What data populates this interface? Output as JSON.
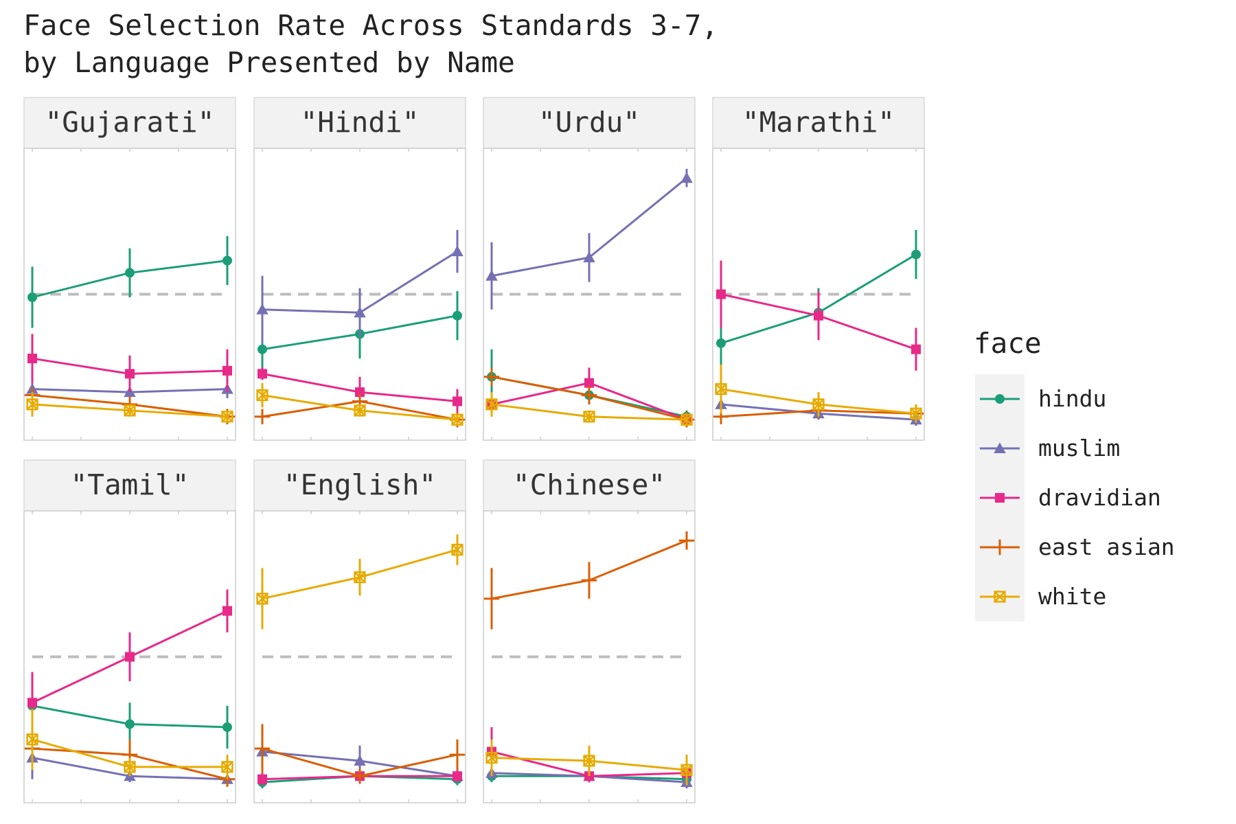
{
  "title_lines": [
    "Face Selection Rate Across Standards 3-7,",
    "by Language Presented by Name"
  ],
  "legend": {
    "title": "face",
    "items": [
      {
        "key": "hindu",
        "label": "hindu",
        "color": "#1b9e77",
        "shape": "circle"
      },
      {
        "key": "muslim",
        "label": "muslim",
        "color": "#7570b3",
        "shape": "triangle"
      },
      {
        "key": "dravidian",
        "label": "dravidian",
        "color": "#e7298a",
        "shape": "square"
      },
      {
        "key": "east_asian",
        "label": "east asian",
        "color": "#d95f02",
        "shape": "plus"
      },
      {
        "key": "white",
        "label": "white",
        "color": "#e6ab02",
        "shape": "boxed-x"
      }
    ]
  },
  "chart_data": {
    "type": "line",
    "title": "Face Selection Rate Across Standards 3-7, by Language Presented by Name",
    "facet_by": "language",
    "x": [
      3,
      5,
      7
    ],
    "x_tick_labels_shown": false,
    "y_tick_labels_shown": false,
    "ylim": [
      0,
      0.9
    ],
    "reference_line": {
      "y": 0.45,
      "style": "dashed",
      "color": "#bdbdbd"
    },
    "grid": false,
    "legend_position": "right",
    "panels": [
      {
        "label": "\"Gujarati\"",
        "series": [
          {
            "name": "hindu",
            "y": [
              0.44,
              0.52,
              0.56
            ],
            "err": [
              0.1,
              0.08,
              0.08
            ]
          },
          {
            "name": "muslim",
            "y": [
              0.14,
              0.13,
              0.14
            ],
            "err": [
              0.03,
              0.03,
              0.03
            ]
          },
          {
            "name": "dravidian",
            "y": [
              0.24,
              0.19,
              0.2
            ],
            "err": [
              0.08,
              0.06,
              0.07
            ]
          },
          {
            "name": "east asian",
            "y": [
              0.12,
              0.09,
              0.05
            ],
            "err": [
              0.02,
              0.02,
              0.02
            ]
          },
          {
            "name": "white",
            "y": [
              0.09,
              0.07,
              0.05
            ],
            "err": [
              0.04,
              0.02,
              0.02
            ]
          }
        ]
      },
      {
        "label": "\"Hindi\"",
        "series": [
          {
            "name": "hindu",
            "y": [
              0.27,
              0.32,
              0.38
            ],
            "err": [
              0.07,
              0.08,
              0.08
            ]
          },
          {
            "name": "muslim",
            "y": [
              0.4,
              0.39,
              0.59
            ],
            "err": [
              0.11,
              0.08,
              0.07
            ]
          },
          {
            "name": "dravidian",
            "y": [
              0.19,
              0.13,
              0.1
            ],
            "err": [
              0.02,
              0.05,
              0.04
            ]
          },
          {
            "name": "east asian",
            "y": [
              0.05,
              0.1,
              0.04
            ],
            "err": [
              0.02,
              0.02,
              0.02
            ]
          },
          {
            "name": "white",
            "y": [
              0.12,
              0.07,
              0.04
            ],
            "err": [
              0.04,
              0.02,
              0.02
            ]
          }
        ]
      },
      {
        "label": "\"Urdu\"",
        "series": [
          {
            "name": "hindu",
            "y": [
              0.18,
              0.12,
              0.05
            ],
            "err": [
              0.09,
              0.03,
              0.02
            ]
          },
          {
            "name": "muslim",
            "y": [
              0.51,
              0.57,
              0.83
            ],
            "err": [
              0.11,
              0.08,
              0.03
            ]
          },
          {
            "name": "dravidian",
            "y": [
              0.09,
              0.16,
              0.04
            ],
            "err": [
              0.04,
              0.05,
              0.02
            ]
          },
          {
            "name": "east asian",
            "y": [
              0.18,
              0.12,
              0.04
            ],
            "err": [
              0.03,
              0.03,
              0.02
            ]
          },
          {
            "name": "white",
            "y": [
              0.09,
              0.05,
              0.04
            ],
            "err": [
              0.04,
              0.02,
              0.02
            ]
          }
        ]
      },
      {
        "label": "\"Marathi\"",
        "series": [
          {
            "name": "hindu",
            "y": [
              0.29,
              0.39,
              0.58
            ],
            "err": [
              0.11,
              0.08,
              0.08
            ]
          },
          {
            "name": "muslim",
            "y": [
              0.09,
              0.06,
              0.04
            ],
            "err": [
              0.02,
              0.02,
              0.02
            ]
          },
          {
            "name": "dravidian",
            "y": [
              0.45,
              0.38,
              0.27
            ],
            "err": [
              0.11,
              0.08,
              0.07
            ]
          },
          {
            "name": "east asian",
            "y": [
              0.05,
              0.07,
              0.06
            ],
            "err": [
              0.02,
              0.02,
              0.02
            ]
          },
          {
            "name": "white",
            "y": [
              0.14,
              0.09,
              0.06
            ],
            "err": [
              0.08,
              0.04,
              0.03
            ]
          }
        ]
      },
      {
        "label": "\"Tamil\"",
        "series": [
          {
            "name": "hindu",
            "y": [
              0.29,
              0.23,
              0.22
            ],
            "err": [
              0.11,
              0.07,
              0.07
            ]
          },
          {
            "name": "muslim",
            "y": [
              0.12,
              0.06,
              0.05
            ],
            "err": [
              0.07,
              0.02,
              0.02
            ]
          },
          {
            "name": "dravidian",
            "y": [
              0.3,
              0.45,
              0.6
            ],
            "err": [
              0.1,
              0.08,
              0.07
            ]
          },
          {
            "name": "east asian",
            "y": [
              0.15,
              0.13,
              0.05
            ],
            "err": [
              0.03,
              0.05,
              0.02
            ]
          },
          {
            "name": "white",
            "y": [
              0.18,
              0.09,
              0.09
            ],
            "err": [
              0.1,
              0.03,
              0.04
            ]
          }
        ]
      },
      {
        "label": "\"English\"",
        "series": [
          {
            "name": "hindu",
            "y": [
              0.04,
              0.06,
              0.05
            ],
            "err": [
              0.02,
              0.02,
              0.02
            ]
          },
          {
            "name": "muslim",
            "y": [
              0.14,
              0.11,
              0.06
            ],
            "err": [
              0.05,
              0.05,
              0.02
            ]
          },
          {
            "name": "dravidian",
            "y": [
              0.05,
              0.06,
              0.06
            ],
            "err": [
              0.02,
              0.02,
              0.02
            ]
          },
          {
            "name": "east asian",
            "y": [
              0.15,
              0.06,
              0.13
            ],
            "err": [
              0.08,
              0.02,
              0.05
            ]
          },
          {
            "name": "white",
            "y": [
              0.64,
              0.71,
              0.8
            ],
            "err": [
              0.1,
              0.06,
              0.05
            ]
          }
        ]
      },
      {
        "label": "\"Chinese\"",
        "series": [
          {
            "name": "hindu",
            "y": [
              0.06,
              0.06,
              0.05
            ],
            "err": [
              0.02,
              0.02,
              0.02
            ]
          },
          {
            "name": "muslim",
            "y": [
              0.07,
              0.06,
              0.04
            ],
            "err": [
              0.02,
              0.02,
              0.02
            ]
          },
          {
            "name": "dravidian",
            "y": [
              0.14,
              0.06,
              0.07
            ],
            "err": [
              0.08,
              0.02,
              0.02
            ]
          },
          {
            "name": "east asian",
            "y": [
              0.64,
              0.7,
              0.83
            ],
            "err": [
              0.1,
              0.06,
              0.03
            ]
          },
          {
            "name": "white",
            "y": [
              0.12,
              0.11,
              0.08
            ],
            "err": [
              0.06,
              0.05,
              0.05
            ]
          }
        ]
      }
    ]
  }
}
